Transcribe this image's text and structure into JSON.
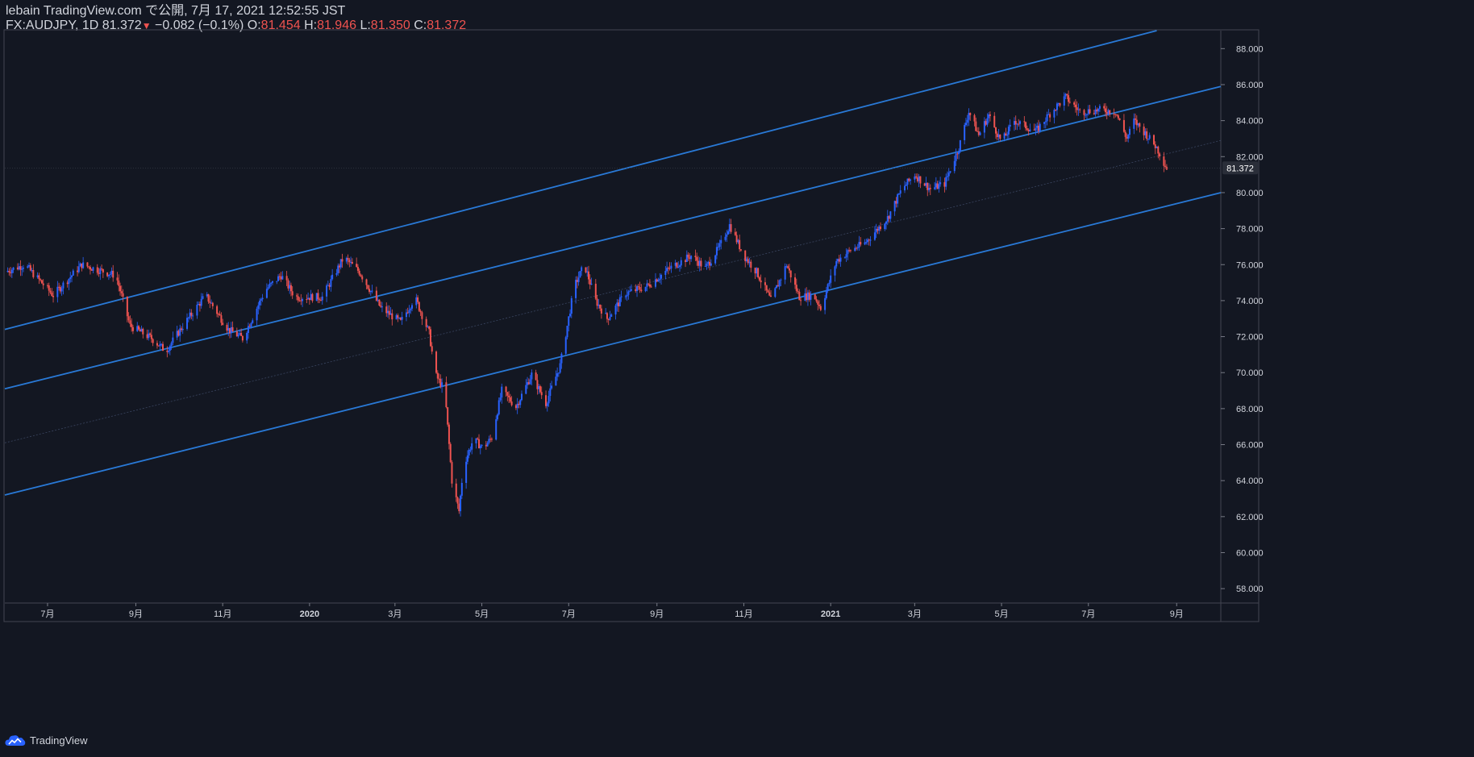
{
  "header": {
    "published_line": "lebain TradingView.com で公開, 7月 17, 2021 12:52:55 JST",
    "symbol": "FX:AUDJPY, 1D",
    "last": "81.372",
    "arrow": "▼",
    "change": "−0.082 (−0.1%)",
    "o_label": "O:",
    "o_value": "81.454",
    "h_label": "H:",
    "h_value": "81.946",
    "l_label": "L:",
    "l_value": "81.350",
    "c_label": "C:",
    "c_value": "81.372"
  },
  "footer": {
    "brand": "TradingView",
    "logo_icon": "tradingview-cloud-icon"
  },
  "colors": {
    "background": "#131722",
    "up": "#2962ff",
    "down": "#ef5350",
    "channel": "#2979d6",
    "text": "#d1d4dc"
  },
  "price_tag": "81.372",
  "chart_data": {
    "type": "candlestick",
    "symbol": "FX:AUDJPY",
    "interval": "1D",
    "y_ticks": [
      "88.000",
      "86.000",
      "84.000",
      "82.000",
      "80.000",
      "78.000",
      "76.000",
      "74.000",
      "72.000",
      "70.000",
      "68.000",
      "66.000",
      "64.000",
      "62.000",
      "60.000",
      "58.000"
    ],
    "ylim": [
      57.2,
      89.0
    ],
    "x_ticks": [
      "7月",
      "9月",
      "11月",
      "2020",
      "3月",
      "5月",
      "7月",
      "9月",
      "11月",
      "2021",
      "3月",
      "5月",
      "7月",
      "9月"
    ],
    "x_tick_dates": [
      "2019-07-01",
      "2019-09-01",
      "2019-11-01",
      "2020-01-01",
      "2020-03-01",
      "2020-05-01",
      "2020-07-01",
      "2020-09-01",
      "2020-11-01",
      "2021-01-01",
      "2021-03-01",
      "2021-05-01",
      "2021-07-01",
      "2021-09-01"
    ],
    "x_range": [
      "2019-06-01",
      "2021-10-02"
    ],
    "close_path": [
      [
        "2019-06-01",
        75.6
      ],
      [
        "2019-06-15",
        76.0
      ],
      [
        "2019-07-05",
        74.3
      ],
      [
        "2019-07-25",
        76.0
      ],
      [
        "2019-08-10",
        75.6
      ],
      [
        "2019-08-18",
        75.4
      ],
      [
        "2019-08-28",
        72.6
      ],
      [
        "2019-09-12",
        71.9
      ],
      [
        "2019-09-22",
        71.2
      ],
      [
        "2019-10-05",
        72.7
      ],
      [
        "2019-10-20",
        74.3
      ],
      [
        "2019-11-05",
        72.4
      ],
      [
        "2019-11-15",
        71.9
      ],
      [
        "2019-12-01",
        74.6
      ],
      [
        "2019-12-12",
        75.4
      ],
      [
        "2019-12-22",
        74.2
      ],
      [
        "2020-01-10",
        74.2
      ],
      [
        "2020-01-25",
        76.4
      ],
      [
        "2020-02-05",
        75.6
      ],
      [
        "2020-02-20",
        73.6
      ],
      [
        "2020-03-05",
        72.8
      ],
      [
        "2020-03-15",
        74.2
      ],
      [
        "2020-03-25",
        72.2
      ],
      [
        "2020-03-28",
        70.6
      ],
      [
        "2020-03-30",
        69.8
      ],
      [
        "2020-04-05",
        69.0
      ],
      [
        "2020-04-10",
        64.0
      ],
      [
        "2020-04-15",
        62.3
      ],
      [
        "2020-04-18",
        64.8
      ],
      [
        "2020-04-25",
        66.3
      ],
      [
        "2020-05-02",
        65.8
      ],
      [
        "2020-05-08",
        66.4
      ],
      [
        "2020-05-15",
        69.0
      ],
      [
        "2020-05-25",
        68.1
      ],
      [
        "2020-06-05",
        69.9
      ],
      [
        "2020-06-15",
        68.3
      ],
      [
        "2020-06-25",
        70.4
      ],
      [
        "2020-07-05",
        74.8
      ],
      [
        "2020-07-12",
        76.0
      ],
      [
        "2020-07-20",
        74.0
      ],
      [
        "2020-07-28",
        73.0
      ],
      [
        "2020-08-10",
        74.4
      ],
      [
        "2020-08-25",
        74.8
      ],
      [
        "2020-09-10",
        75.8
      ],
      [
        "2020-09-25",
        76.5
      ],
      [
        "2020-10-05",
        75.8
      ],
      [
        "2020-10-15",
        77.0
      ],
      [
        "2020-10-22",
        78.2
      ],
      [
        "2020-11-01",
        76.5
      ],
      [
        "2020-11-10",
        75.6
      ],
      [
        "2020-11-20",
        74.0
      ],
      [
        "2020-12-01",
        76.0
      ],
      [
        "2020-12-10",
        74.2
      ],
      [
        "2020-12-20",
        74.3
      ],
      [
        "2020-12-25",
        73.6
      ],
      [
        "2021-01-05",
        76.2
      ],
      [
        "2021-01-15",
        76.8
      ],
      [
        "2021-01-25",
        77.2
      ],
      [
        "2021-02-10",
        78.6
      ],
      [
        "2021-02-20",
        80.2
      ],
      [
        "2021-03-01",
        81.0
      ],
      [
        "2021-03-12",
        80.2
      ],
      [
        "2021-03-22",
        80.5
      ],
      [
        "2021-04-01",
        82.5
      ],
      [
        "2021-04-08",
        84.5
      ],
      [
        "2021-04-15",
        83.2
      ],
      [
        "2021-04-22",
        84.3
      ],
      [
        "2021-05-01",
        82.8
      ],
      [
        "2021-05-10",
        84.0
      ],
      [
        "2021-05-25",
        83.4
      ],
      [
        "2021-06-05",
        84.5
      ],
      [
        "2021-06-15",
        85.3
      ],
      [
        "2021-06-25",
        84.5
      ],
      [
        "2021-07-10",
        84.6
      ],
      [
        "2021-07-20",
        84.5
      ],
      [
        "2021-07-28",
        83.0
      ],
      [
        "2021-08-02",
        84.0
      ],
      [
        "2021-08-10",
        83.3
      ],
      [
        "2021-08-18",
        82.5
      ],
      [
        "2021-08-25",
        81.37
      ]
    ],
    "channel_lines": [
      {
        "points": [
          [
            "2019-06-01",
            72.4
          ],
          [
            "2021-08-18",
            89.0
          ]
        ]
      },
      {
        "points": [
          [
            "2019-06-01",
            69.1
          ],
          [
            "2021-10-02",
            85.9
          ]
        ]
      },
      {
        "points": [
          [
            "2019-06-01",
            63.2
          ],
          [
            "2021-10-02",
            80.0
          ]
        ]
      },
      {
        "points": [
          [
            "2019-06-01",
            66.1
          ],
          [
            "2021-10-02",
            82.9
          ]
        ],
        "style": "dotted-center"
      }
    ],
    "last_price": 81.372
  }
}
